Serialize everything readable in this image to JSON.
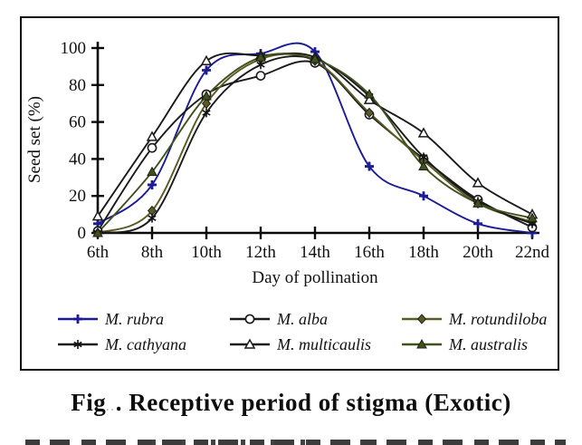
{
  "figure": {
    "caption": {
      "fig_word": "Fig",
      "faint_marks": "..",
      "rest": ". Receptive period of stigma (Exotic)"
    }
  },
  "chart_data": {
    "type": "line",
    "title": "",
    "xlabel": "Day of pollination",
    "ylabel": "Seed set (%)",
    "ylim": [
      0,
      100
    ],
    "yticks": [
      0,
      20,
      40,
      60,
      80,
      100
    ],
    "grid": false,
    "legend_position": "bottom-inside",
    "categories": [
      "6th",
      "8th",
      "10th",
      "12th",
      "14th",
      "16th",
      "18th",
      "20th",
      "22nd"
    ],
    "series": [
      {
        "name": "M. rubra",
        "marker": "plus",
        "color": "#1c1c94",
        "values": [
          5,
          26,
          88,
          97,
          98,
          36,
          20,
          5,
          0
        ]
      },
      {
        "name": "M. alba",
        "marker": "circle-open",
        "color": "#1a1a1a",
        "values": [
          1,
          46,
          75,
          85,
          92,
          64,
          40,
          18,
          3
        ]
      },
      {
        "name": "M. rotundiloba",
        "marker": "diamond-filled",
        "color": "#5a5a22",
        "values": [
          0,
          12,
          70,
          94,
          93,
          65,
          39,
          16,
          6
        ]
      },
      {
        "name": "M. cathyana",
        "marker": "asterisk",
        "color": "#1a1a1a",
        "values": [
          0,
          8,
          65,
          91,
          94,
          74,
          41,
          17,
          5
        ]
      },
      {
        "name": "M. multicaulis",
        "marker": "triangle-open",
        "color": "#1a1a1a",
        "values": [
          9,
          52,
          93,
          96,
          95,
          72,
          54,
          27,
          10
        ]
      },
      {
        "name": "M. australis",
        "marker": "triangle-filled",
        "color": "#40511d",
        "values": [
          0,
          33,
          74,
          95,
          94,
          75,
          36,
          16,
          8
        ]
      }
    ]
  }
}
